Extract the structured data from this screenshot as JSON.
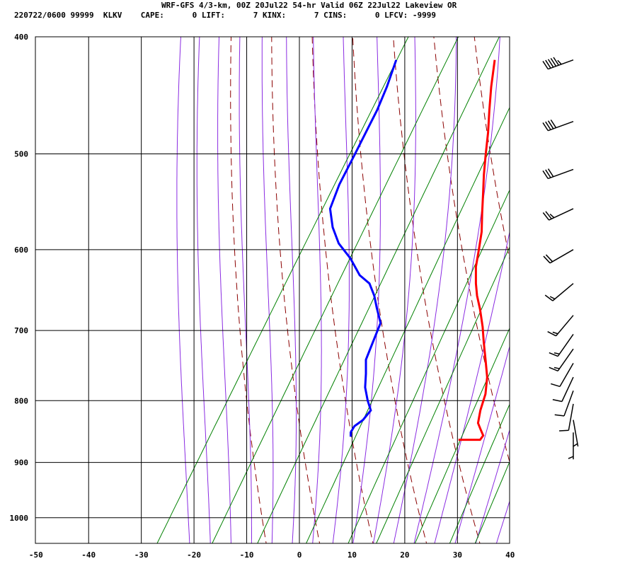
{
  "header": {
    "line1": "WRF-GFS 4/3-km, 00Z 20Jul22 54-hr Valid 06Z 22Jul22 Lakeview OR",
    "line2": "220722/0600 99999  KLKV    CAPE:      0 LIFT:      7 KINX:      7 CINS:      0 LFCV: -9999"
  },
  "colors": {
    "temperature": "#ff0000",
    "dewpoint": "#0000ff",
    "dry_adiabat": "#8b0000",
    "moist_adiabat": "#8a2be2",
    "mixing_ratio": "#008000",
    "grid": "#000000"
  },
  "chart_data": {
    "type": "line",
    "subtype": "skew-T log-P sounding",
    "x_label": "",
    "y_label": "",
    "x_ticks": [
      "-50",
      "-40",
      "-30",
      "-20",
      "-10",
      "0",
      "10",
      "20",
      "30",
      "40"
    ],
    "x_range": [
      -50,
      40
    ],
    "y_ticks": [
      "400",
      "500",
      "600",
      "700",
      "800",
      "900",
      "1000"
    ],
    "y_range_hpa": [
      400,
      1050
    ],
    "y_scale": "log",
    "grid": true,
    "series": [
      {
        "name": "",
        "role": "temperature",
        "color": "#ff0000",
        "points_hpa_degC": [
          [
            862,
            18.4
          ],
          [
            862,
            22.5
          ],
          [
            855,
            22.6
          ],
          [
            845,
            21.4
          ],
          [
            835,
            20.2
          ],
          [
            815,
            19.2
          ],
          [
            790,
            18.3
          ],
          [
            765,
            16.7
          ],
          [
            740,
            14.4
          ],
          [
            715,
            12.0
          ],
          [
            695,
            10.1
          ],
          [
            672,
            7.6
          ],
          [
            655,
            5.5
          ],
          [
            640,
            3.9
          ],
          [
            620,
            2.0
          ],
          [
            600,
            0.6
          ],
          [
            580,
            -0.9
          ],
          [
            560,
            -2.9
          ],
          [
            540,
            -4.9
          ],
          [
            520,
            -7.0
          ],
          [
            500,
            -9.0
          ],
          [
            480,
            -11.0
          ],
          [
            460,
            -13.3
          ],
          [
            440,
            -15.6
          ],
          [
            418,
            -18.0
          ]
        ]
      },
      {
        "name": "",
        "role": "dewpoint",
        "color": "#0000ff",
        "points_hpa_degC": [
          [
            857,
            -2.4
          ],
          [
            850,
            -2.9
          ],
          [
            840,
            -2.9
          ],
          [
            830,
            -2.0
          ],
          [
            815,
            -1.6
          ],
          [
            800,
            -3.3
          ],
          [
            780,
            -5.3
          ],
          [
            760,
            -6.7
          ],
          [
            740,
            -8.3
          ],
          [
            715,
            -9.0
          ],
          [
            690,
            -9.7
          ],
          [
            670,
            -12.2
          ],
          [
            655,
            -14.0
          ],
          [
            640,
            -16.3
          ],
          [
            630,
            -19.1
          ],
          [
            610,
            -22.8
          ],
          [
            593,
            -26.7
          ],
          [
            575,
            -29.7
          ],
          [
            555,
            -32.3
          ],
          [
            530,
            -33.3
          ],
          [
            500,
            -33.8
          ],
          [
            480,
            -34.2
          ],
          [
            460,
            -34.6
          ],
          [
            440,
            -35.4
          ],
          [
            418,
            -36.7
          ]
        ]
      }
    ],
    "wind_barbs": [
      {
        "hpa": 418,
        "speed_kt": 55,
        "dir_deg": 250
      },
      {
        "hpa": 470,
        "speed_kt": 40,
        "dir_deg": 250
      },
      {
        "hpa": 515,
        "speed_kt": 30,
        "dir_deg": 250
      },
      {
        "hpa": 555,
        "speed_kt": 25,
        "dir_deg": 245
      },
      {
        "hpa": 600,
        "speed_kt": 20,
        "dir_deg": 240
      },
      {
        "hpa": 640,
        "speed_kt": 15,
        "dir_deg": 230
      },
      {
        "hpa": 680,
        "speed_kt": 15,
        "dir_deg": 220
      },
      {
        "hpa": 705,
        "speed_kt": 15,
        "dir_deg": 215
      },
      {
        "hpa": 725,
        "speed_kt": 15,
        "dir_deg": 215
      },
      {
        "hpa": 745,
        "speed_kt": 10,
        "dir_deg": 210
      },
      {
        "hpa": 765,
        "speed_kt": 10,
        "dir_deg": 205
      },
      {
        "hpa": 785,
        "speed_kt": 10,
        "dir_deg": 200
      },
      {
        "hpa": 805,
        "speed_kt": 10,
        "dir_deg": 190
      },
      {
        "hpa": 830,
        "speed_kt": 5,
        "dir_deg": 170
      },
      {
        "hpa": 850,
        "speed_kt": 5,
        "dir_deg": 180
      }
    ]
  }
}
